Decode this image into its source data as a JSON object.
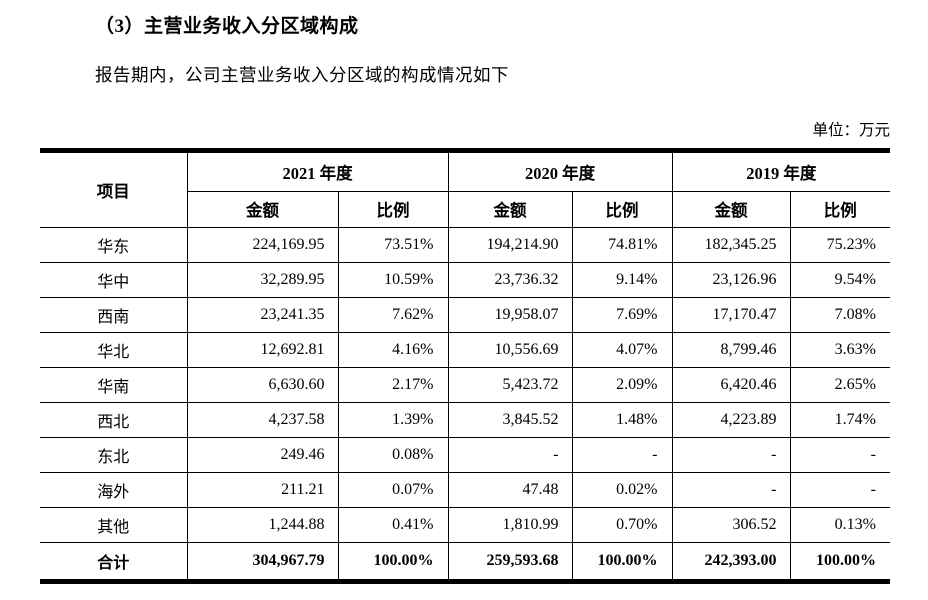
{
  "page": {
    "title": "（3）主营业务收入分区域构成",
    "subtitle": "报告期内，公司主营业务收入分区域的构成情况如下",
    "unit_label": "单位：万元"
  },
  "table": {
    "item_header": "项目",
    "year_groups": [
      {
        "label": "2021 年度"
      },
      {
        "label": "2020 年度"
      },
      {
        "label": "2019 年度"
      }
    ],
    "sub_headers": {
      "amount": "金额",
      "ratio": "比例"
    },
    "rows": [
      {
        "name": "华东",
        "values": [
          "224,169.95",
          "73.51%",
          "194,214.90",
          "74.81%",
          "182,345.25",
          "75.23%"
        ]
      },
      {
        "name": "华中",
        "values": [
          "32,289.95",
          "10.59%",
          "23,736.32",
          "9.14%",
          "23,126.96",
          "9.54%"
        ]
      },
      {
        "name": "西南",
        "values": [
          "23,241.35",
          "7.62%",
          "19,958.07",
          "7.69%",
          "17,170.47",
          "7.08%"
        ]
      },
      {
        "name": "华北",
        "values": [
          "12,692.81",
          "4.16%",
          "10,556.69",
          "4.07%",
          "8,799.46",
          "3.63%"
        ]
      },
      {
        "name": "华南",
        "values": [
          "6,630.60",
          "2.17%",
          "5,423.72",
          "2.09%",
          "6,420.46",
          "2.65%"
        ]
      },
      {
        "name": "西北",
        "values": [
          "4,237.58",
          "1.39%",
          "3,845.52",
          "1.48%",
          "4,223.89",
          "1.74%"
        ]
      },
      {
        "name": "东北",
        "values": [
          "249.46",
          "0.08%",
          "-",
          "-",
          "-",
          "-"
        ]
      },
      {
        "name": "海外",
        "values": [
          "211.21",
          "0.07%",
          "47.48",
          "0.02%",
          "-",
          "-"
        ]
      },
      {
        "name": "其他",
        "values": [
          "1,244.88",
          "0.41%",
          "1,810.99",
          "0.70%",
          "306.52",
          "0.13%"
        ]
      }
    ],
    "total_row": {
      "name": "合计",
      "values": [
        "304,967.79",
        "100.00%",
        "259,593.68",
        "100.00%",
        "242,393.00",
        "100.00%"
      ]
    }
  }
}
